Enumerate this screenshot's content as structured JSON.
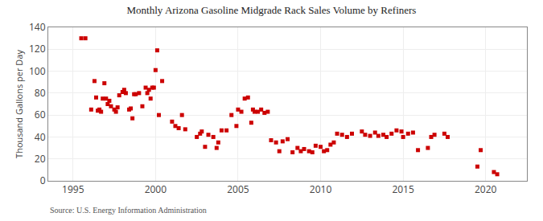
{
  "chart_data": {
    "type": "scatter",
    "title": "Monthly Arizona Gasoline Midgrade Rack Sales Volume by Refiners",
    "ylabel": "Thousand Gallons per Day",
    "annotations": [
      "Source: U.S. Energy Information Administration"
    ],
    "color": "#cc0000",
    "marker": "square",
    "grid": true,
    "xlim": [
      1993.5,
      2022.5
    ],
    "ylim": [
      0,
      140
    ],
    "xticks": [
      1995,
      2000,
      2005,
      2010,
      2015,
      2020
    ],
    "yticks": [
      0,
      20,
      40,
      60,
      80,
      100,
      120,
      140
    ],
    "x": [
      1995.5,
      1995.75,
      1996.1,
      1996.3,
      1996.4,
      1996.5,
      1996.6,
      1996.7,
      1996.8,
      1996.9,
      1997.0,
      1997.1,
      1997.2,
      1997.3,
      1997.5,
      1997.6,
      1997.7,
      1997.8,
      1998.0,
      1998.1,
      1998.2,
      1998.4,
      1998.5,
      1998.6,
      1998.7,
      1998.8,
      1999.0,
      1999.2,
      1999.4,
      1999.5,
      1999.6,
      1999.7,
      1999.8,
      1999.9,
      2000.0,
      2000.1,
      2000.2,
      2000.4,
      2001.0,
      2001.2,
      2001.4,
      2001.6,
      2001.8,
      2002.5,
      2002.7,
      2002.8,
      2003.0,
      2003.2,
      2003.5,
      2003.7,
      2003.8,
      2004.0,
      2004.3,
      2004.6,
      2004.9,
      2005.0,
      2005.2,
      2005.4,
      2005.6,
      2005.8,
      2005.9,
      2006.0,
      2006.2,
      2006.4,
      2006.6,
      2006.8,
      2007.0,
      2007.3,
      2007.5,
      2007.7,
      2008.0,
      2008.3,
      2008.6,
      2008.8,
      2009.0,
      2009.3,
      2009.5,
      2009.7,
      2010.0,
      2010.2,
      2010.4,
      2010.6,
      2010.8,
      2011.0,
      2011.3,
      2011.6,
      2011.9,
      2012.5,
      2012.7,
      2013.0,
      2013.3,
      2013.5,
      2013.8,
      2014.0,
      2014.3,
      2014.6,
      2014.9,
      2015.0,
      2015.3,
      2015.6,
      2015.9,
      2016.5,
      2016.7,
      2016.9,
      2017.5,
      2017.7,
      2019.5,
      2019.7,
      2020.5,
      2020.7
    ],
    "values": [
      130,
      130,
      65,
      91,
      76,
      64,
      65,
      63,
      75,
      89,
      75,
      70,
      73,
      68,
      65,
      63,
      67,
      78,
      81,
      83,
      80,
      65,
      66,
      57,
      79,
      79,
      80,
      68,
      85,
      80,
      83,
      75,
      85,
      85,
      101,
      119,
      60,
      91,
      54,
      50,
      48,
      60,
      47,
      40,
      43,
      45,
      31,
      42,
      40,
      30,
      35,
      46,
      46,
      60,
      50,
      65,
      63,
      75,
      76,
      53,
      65,
      63,
      63,
      65,
      62,
      63,
      37,
      35,
      27,
      36,
      38,
      26,
      30,
      27,
      29,
      27,
      26,
      32,
      31,
      27,
      28,
      33,
      35,
      43,
      42,
      40,
      43,
      45,
      42,
      41,
      44,
      41,
      42,
      40,
      43,
      46,
      45,
      40,
      43,
      44,
      28,
      30,
      40,
      42,
      43,
      40,
      13,
      28,
      8,
      6
    ]
  }
}
